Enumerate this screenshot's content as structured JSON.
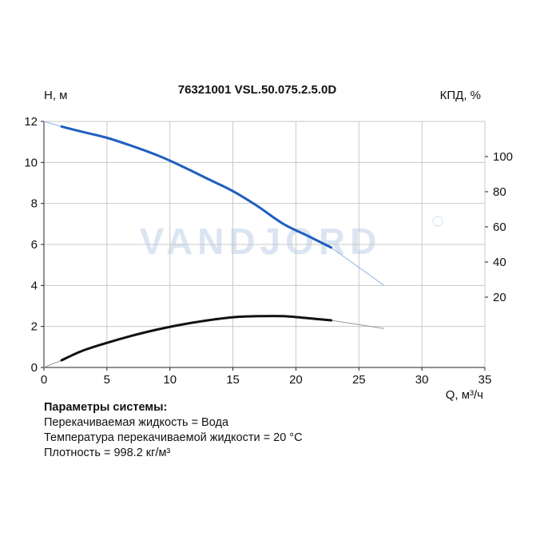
{
  "chart_data": {
    "type": "line",
    "title": "76321001 VSL.50.075.2.5.0D",
    "left_axis_label": "H, м",
    "right_axis_label": "КПД, %",
    "xlabel": "Q, м³/ч",
    "xlim": [
      0,
      35
    ],
    "x_ticks": [
      "0",
      "5",
      "10",
      "15",
      "20",
      "25",
      "30",
      "35"
    ],
    "ylim": [
      0,
      12
    ],
    "y_ticks": [
      "0",
      "2",
      "4",
      "6",
      "8",
      "10",
      "12"
    ],
    "y2lim": [
      -20,
      120
    ],
    "y2_ticks": [
      "20",
      "40",
      "60",
      "80",
      "100"
    ],
    "grid": true,
    "watermark": "VANDJORD",
    "series": [
      {
        "role": "head",
        "color": "#1f5fbf",
        "extension_color": "#8db4e6",
        "x": [
          1.4,
          3,
          5,
          7,
          9,
          11,
          13,
          15,
          17,
          19,
          21,
          22.8
        ],
        "y": [
          11.75,
          11.5,
          11.2,
          10.8,
          10.35,
          9.8,
          9.2,
          8.6,
          7.85,
          7.0,
          6.4,
          5.85
        ],
        "ext_before": {
          "x": [
            0,
            1.4
          ],
          "y": [
            12.0,
            11.75
          ]
        },
        "ext_after": {
          "x": [
            22.8,
            27
          ],
          "y": [
            5.85,
            4.0
          ]
        }
      },
      {
        "role": "power",
        "color": "#111111",
        "extension_color": "#999999",
        "x": [
          1.4,
          3,
          5,
          7,
          9,
          11,
          13,
          15,
          17,
          19,
          21,
          22.8
        ],
        "y": [
          0.35,
          0.8,
          1.2,
          1.55,
          1.85,
          2.1,
          2.3,
          2.45,
          2.5,
          2.5,
          2.4,
          2.3
        ],
        "ext_before": {
          "x": [
            0,
            1.4
          ],
          "y": [
            0.0,
            0.35
          ]
        },
        "ext_after": {
          "x": [
            22.8,
            27
          ],
          "y": [
            2.3,
            1.9
          ]
        }
      }
    ]
  },
  "params": {
    "title": "Параметры системы:",
    "lines": [
      "Перекачиваемая жидкость = Вода",
      "Температура перекачиваемой жидкости = 20 °C",
      "Плотность = 998.2 кг/м³"
    ]
  },
  "watermark_color": "#dbe5f2"
}
